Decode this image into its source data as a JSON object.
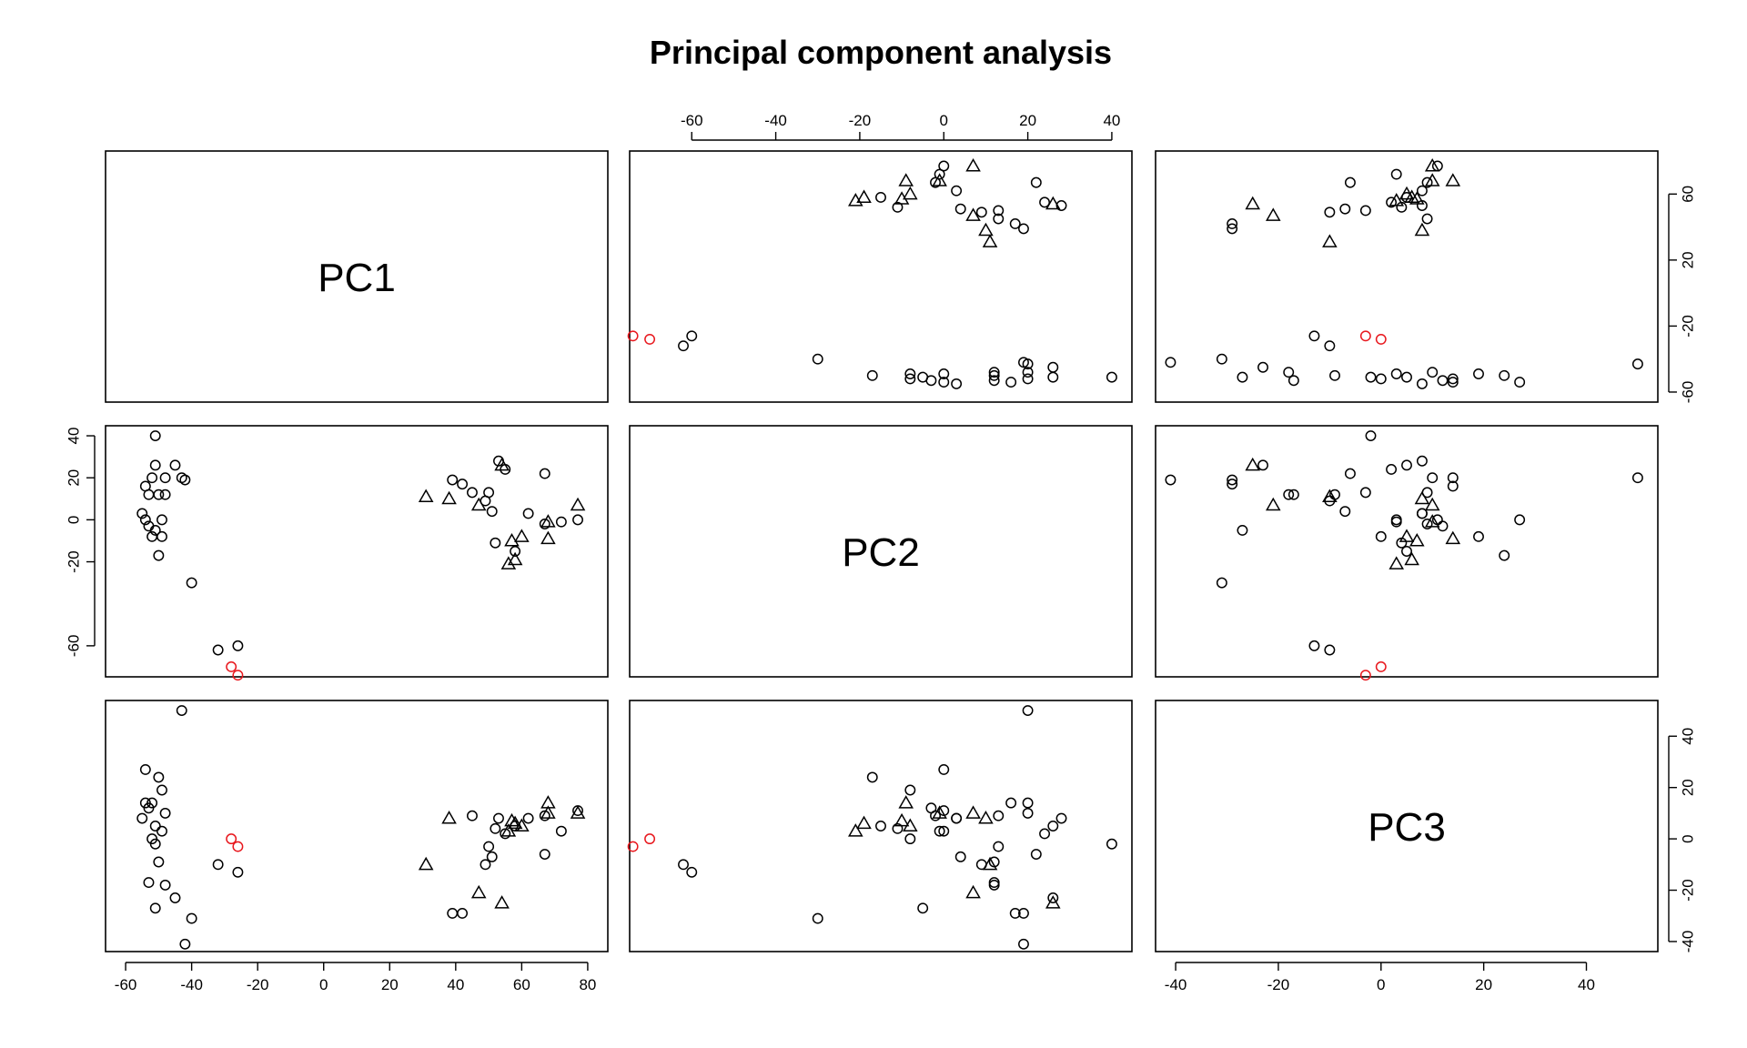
{
  "chart_data": {
    "type": "scatter",
    "title": "Principal component analysis",
    "variables": [
      "PC1",
      "PC2",
      "PC3"
    ],
    "layout": "scatterplot-matrix",
    "ranges": {
      "PC1": [
        -60,
        80
      ],
      "PC2": [
        -70,
        40
      ],
      "PC3": [
        -40,
        50
      ]
    },
    "ticks": {
      "PC1": [
        -60,
        -40,
        -20,
        0,
        20,
        40,
        60,
        80
      ],
      "PC2": [
        -60,
        -20,
        0,
        20,
        40
      ],
      "PC3": [
        -40,
        -20,
        0,
        20,
        40
      ]
    },
    "axes": {
      "top": [
        {
          "var": "PC2",
          "ticks": [
            -60,
            -40,
            -20,
            0,
            20,
            40
          ]
        }
      ],
      "right": [
        {
          "var": "PC1",
          "ticks": [
            -60,
            -20,
            20,
            60
          ]
        },
        {
          "var": "PC3",
          "ticks": [
            -40,
            -20,
            0,
            20,
            40
          ]
        }
      ],
      "left": [
        {
          "var": "PC2",
          "ticks": [
            -60,
            -20,
            0,
            20,
            40
          ]
        }
      ],
      "bottom": [
        {
          "var": "PC1",
          "ticks": [
            -60,
            -40,
            -20,
            0,
            20,
            40,
            60,
            80
          ]
        },
        {
          "var": "PC3",
          "ticks": [
            -40,
            -20,
            0,
            20,
            40
          ]
        }
      ]
    },
    "colors": {
      "group_main": "#000000",
      "group_highlight": "#e8171d"
    },
    "grid": false,
    "legend": "none",
    "points": [
      {
        "pc1": -55,
        "pc2": 3,
        "pc3": 8,
        "shape": "circle",
        "color": "black"
      },
      {
        "pc1": -54,
        "pc2": 0,
        "pc3": 27,
        "shape": "circle",
        "color": "black"
      },
      {
        "pc1": -54,
        "pc2": 16,
        "pc3": 14,
        "shape": "circle",
        "color": "black"
      },
      {
        "pc1": -53,
        "pc2": -3,
        "pc3": 12,
        "shape": "circle",
        "color": "black"
      },
      {
        "pc1": -53,
        "pc2": 12,
        "pc3": -17,
        "shape": "circle",
        "color": "black"
      },
      {
        "pc1": -52,
        "pc2": -8,
        "pc3": 0,
        "shape": "circle",
        "color": "black"
      },
      {
        "pc1": -52,
        "pc2": 20,
        "pc3": 14,
        "shape": "circle",
        "color": "black"
      },
      {
        "pc1": -51,
        "pc2": -5,
        "pc3": -27,
        "shape": "circle",
        "color": "black"
      },
      {
        "pc1": -51,
        "pc2": 26,
        "pc3": 5,
        "shape": "circle",
        "color": "black"
      },
      {
        "pc1": -51,
        "pc2": 40,
        "pc3": -2,
        "shape": "circle",
        "color": "black"
      },
      {
        "pc1": -50,
        "pc2": -17,
        "pc3": 24,
        "shape": "circle",
        "color": "black"
      },
      {
        "pc1": -50,
        "pc2": 12,
        "pc3": -9,
        "shape": "circle",
        "color": "black"
      },
      {
        "pc1": -49,
        "pc2": 0,
        "pc3": 3,
        "shape": "circle",
        "color": "black"
      },
      {
        "pc1": -49,
        "pc2": -8,
        "pc3": 19,
        "shape": "circle",
        "color": "black"
      },
      {
        "pc1": -48,
        "pc2": 20,
        "pc3": 10,
        "shape": "circle",
        "color": "black"
      },
      {
        "pc1": -48,
        "pc2": 12,
        "pc3": -18,
        "shape": "circle",
        "color": "black"
      },
      {
        "pc1": -45,
        "pc2": 26,
        "pc3": -23,
        "shape": "circle",
        "color": "black"
      },
      {
        "pc1": -43,
        "pc2": 20,
        "pc3": 50,
        "shape": "circle",
        "color": "black"
      },
      {
        "pc1": -42,
        "pc2": 19,
        "pc3": -41,
        "shape": "circle",
        "color": "black"
      },
      {
        "pc1": -40,
        "pc2": -30,
        "pc3": -31,
        "shape": "circle",
        "color": "black"
      },
      {
        "pc1": -32,
        "pc2": -62,
        "pc3": -10,
        "shape": "circle",
        "color": "black"
      },
      {
        "pc1": -28,
        "pc2": -70,
        "pc3": 0,
        "shape": "circle",
        "color": "red"
      },
      {
        "pc1": -26,
        "pc2": -74,
        "pc3": -3,
        "shape": "circle",
        "color": "red"
      },
      {
        "pc1": -26,
        "pc2": -60,
        "pc3": -13,
        "shape": "circle",
        "color": "black"
      },
      {
        "pc1": 31,
        "pc2": 11,
        "pc3": -10,
        "shape": "triangle",
        "color": "black"
      },
      {
        "pc1": 38,
        "pc2": 10,
        "pc3": 8,
        "shape": "triangle",
        "color": "black"
      },
      {
        "pc1": 39,
        "pc2": 19,
        "pc3": -29,
        "shape": "circle",
        "color": "black"
      },
      {
        "pc1": 42,
        "pc2": 17,
        "pc3": -29,
        "shape": "circle",
        "color": "black"
      },
      {
        "pc1": 45,
        "pc2": 13,
        "pc3": 9,
        "shape": "circle",
        "color": "black"
      },
      {
        "pc1": 47,
        "pc2": 7,
        "pc3": -21,
        "shape": "triangle",
        "color": "black"
      },
      {
        "pc1": 49,
        "pc2": 9,
        "pc3": -10,
        "shape": "circle",
        "color": "black"
      },
      {
        "pc1": 50,
        "pc2": 13,
        "pc3": -3,
        "shape": "circle",
        "color": "black"
      },
      {
        "pc1": 51,
        "pc2": 4,
        "pc3": -7,
        "shape": "circle",
        "color": "black"
      },
      {
        "pc1": 52,
        "pc2": -11,
        "pc3": 4,
        "shape": "circle",
        "color": "black"
      },
      {
        "pc1": 53,
        "pc2": 28,
        "pc3": 8,
        "shape": "circle",
        "color": "black"
      },
      {
        "pc1": 54,
        "pc2": 26,
        "pc3": -25,
        "shape": "triangle",
        "color": "black"
      },
      {
        "pc1": 55,
        "pc2": 24,
        "pc3": 2,
        "shape": "circle",
        "color": "black"
      },
      {
        "pc1": 56,
        "pc2": -21,
        "pc3": 3,
        "shape": "triangle",
        "color": "black"
      },
      {
        "pc1": 57,
        "pc2": -10,
        "pc3": 7,
        "shape": "triangle",
        "color": "black"
      },
      {
        "pc1": 58,
        "pc2": -15,
        "pc3": 5,
        "shape": "circle",
        "color": "black"
      },
      {
        "pc1": 58,
        "pc2": -19,
        "pc3": 6,
        "shape": "triangle",
        "color": "black"
      },
      {
        "pc1": 60,
        "pc2": -8,
        "pc3": 5,
        "shape": "triangle",
        "color": "black"
      },
      {
        "pc1": 62,
        "pc2": 3,
        "pc3": 8,
        "shape": "circle",
        "color": "black"
      },
      {
        "pc1": 67,
        "pc2": -2,
        "pc3": 9,
        "shape": "circle",
        "color": "black"
      },
      {
        "pc1": 67,
        "pc2": 22,
        "pc3": -6,
        "shape": "circle",
        "color": "black"
      },
      {
        "pc1": 68,
        "pc2": -9,
        "pc3": 14,
        "shape": "triangle",
        "color": "black"
      },
      {
        "pc1": 68,
        "pc2": -1,
        "pc3": 10,
        "shape": "triangle",
        "color": "black"
      },
      {
        "pc1": 72,
        "pc2": -1,
        "pc3": 3,
        "shape": "circle",
        "color": "black"
      },
      {
        "pc1": 77,
        "pc2": 0,
        "pc3": 11,
        "shape": "circle",
        "color": "black"
      },
      {
        "pc1": 77,
        "pc2": 7,
        "pc3": 10,
        "shape": "triangle",
        "color": "black"
      }
    ]
  }
}
